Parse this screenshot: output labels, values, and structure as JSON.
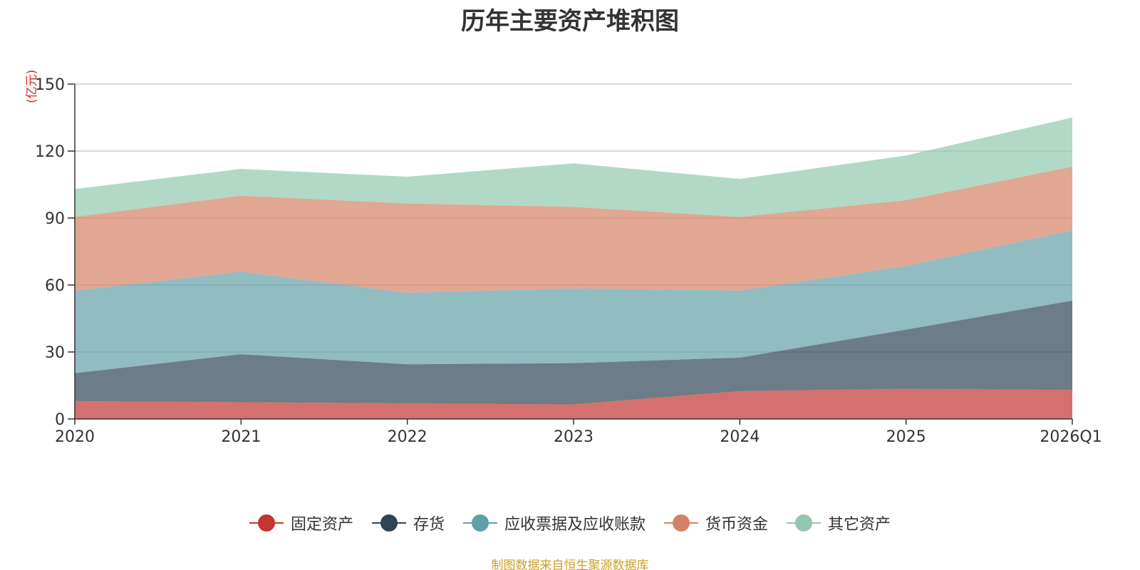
{
  "chart_data": {
    "type": "area",
    "stacked": true,
    "title": "历年主要资产堆积图",
    "unit": "(亿元)",
    "categories": [
      "2020",
      "2021",
      "2022",
      "2023",
      "2024",
      "2025",
      "2026Q1"
    ],
    "ylim": [
      0,
      150
    ],
    "yticks": [
      0,
      30,
      60,
      90,
      120,
      150
    ],
    "grid": true,
    "legend_position": "bottom",
    "series": [
      {
        "name": "固定资产",
        "color": "#c23531",
        "values": [
          8,
          7.5,
          7,
          6.5,
          12.5,
          13.5,
          13
        ]
      },
      {
        "name": "存货",
        "color": "#2f4554",
        "values": [
          12.5,
          21.5,
          17.5,
          18.5,
          15,
          26.5,
          40
        ]
      },
      {
        "name": "应收票据及应收账款",
        "color": "#61a0a8",
        "values": [
          37,
          37,
          32,
          33.5,
          30,
          28.5,
          31.5
        ]
      },
      {
        "name": "货币资金",
        "color": "#d48265",
        "values": [
          33,
          34,
          40,
          36.5,
          33,
          29.5,
          28.5
        ]
      },
      {
        "name": "其它资产",
        "color": "#91c7ae",
        "values": [
          12.5,
          12,
          12,
          19.5,
          17,
          20,
          22
        ]
      }
    ]
  },
  "footer": {
    "source": "制图数据来自恒生聚源数据库"
  }
}
